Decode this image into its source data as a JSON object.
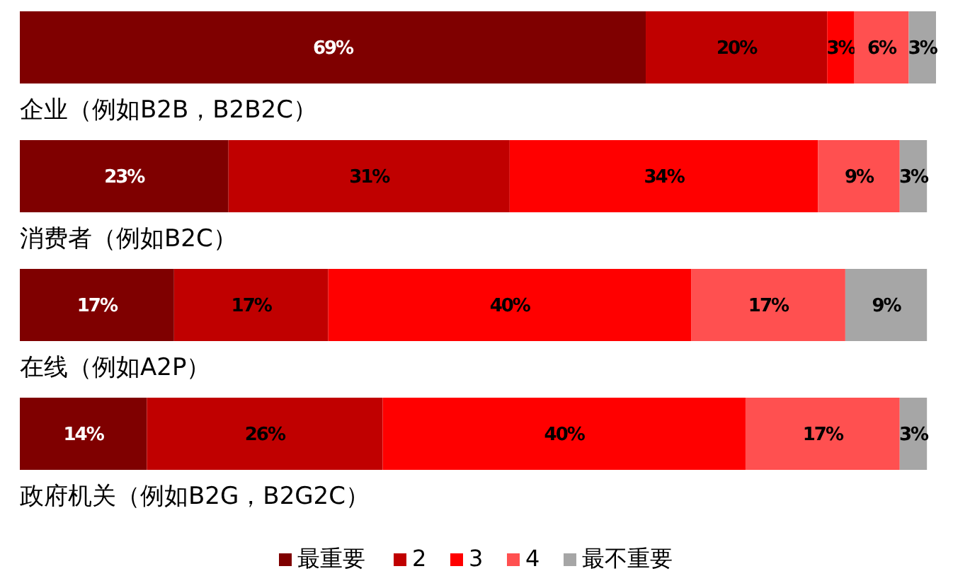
{
  "chart_data": {
    "type": "bar",
    "orientation": "horizontal",
    "stacked": true,
    "legend": "bottom",
    "categories": [
      "企业（例如B2B，B2B2C）",
      "消费者（例如B2C）",
      "在线（例如A2P）",
      "政府机关（例如B2G，B2G2C）"
    ],
    "series": [
      {
        "name": "最重要",
        "color": "#7f0000",
        "values": [
          69,
          23,
          17,
          14
        ],
        "value_labels": [
          "69%",
          "23%",
          "17%",
          "14%"
        ]
      },
      {
        "name": "2",
        "color": "#c00000",
        "values": [
          20,
          31,
          17,
          26
        ],
        "value_labels": [
          "20%",
          "31%",
          "17%",
          "26%"
        ]
      },
      {
        "name": "3",
        "color": "#ff0000",
        "values": [
          3,
          34,
          40,
          40
        ],
        "value_labels": [
          "3%",
          "34%",
          "40%",
          "40%"
        ]
      },
      {
        "name": "4",
        "color": "#ff5050",
        "values": [
          6,
          9,
          17,
          17
        ],
        "value_labels": [
          "6%",
          "9%",
          "17%",
          "17%"
        ]
      },
      {
        "name": "最不重要",
        "color": "#a6a6a6",
        "values": [
          3,
          3,
          9,
          3
        ],
        "value_labels": [
          "3%",
          "3%",
          "9%",
          "3%"
        ]
      }
    ]
  }
}
